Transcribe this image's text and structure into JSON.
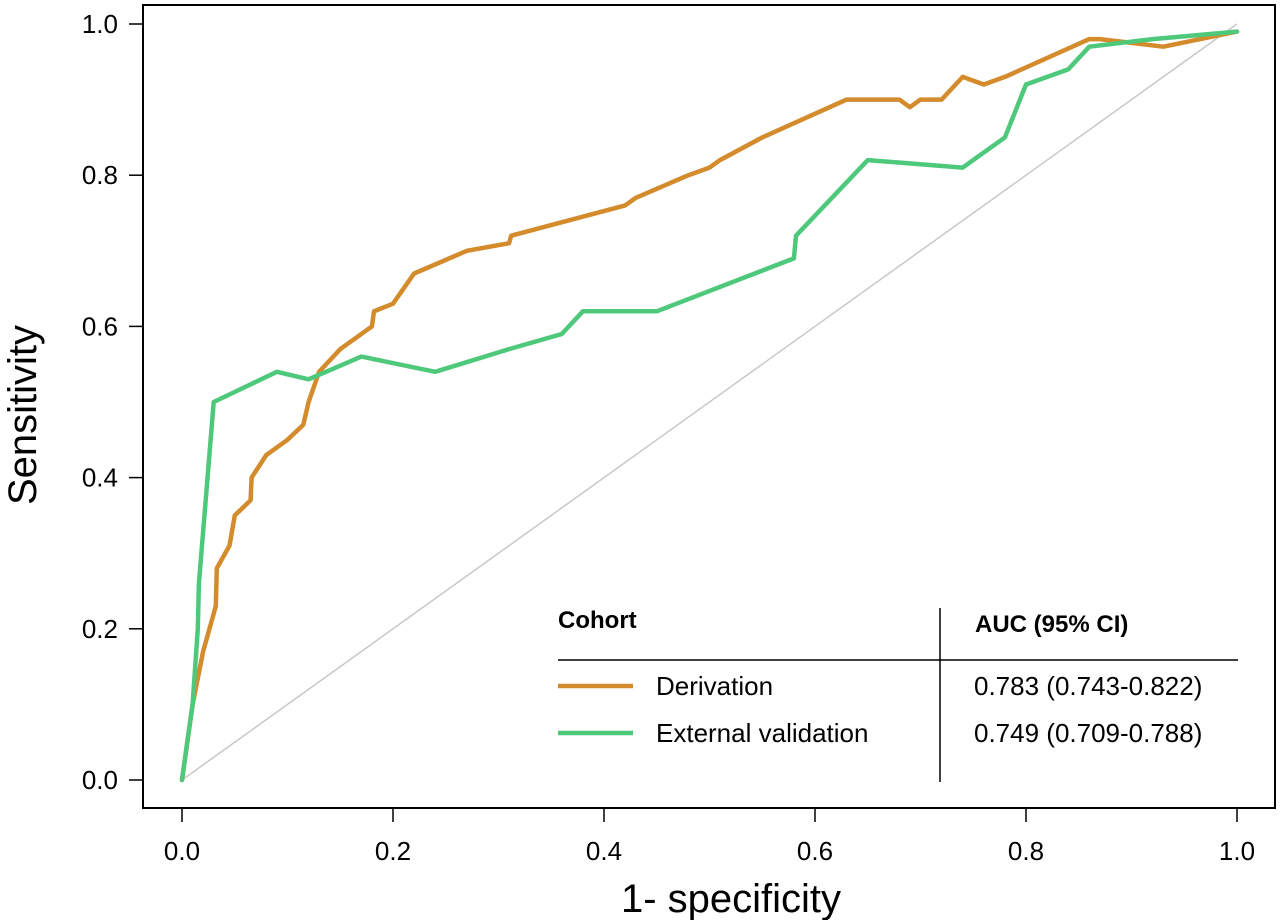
{
  "chart_data": {
    "type": "line",
    "title": "",
    "xlabel": "1- specificity",
    "ylabel": "Sensitivity",
    "xlim": [
      0,
      1
    ],
    "ylim": [
      0,
      1
    ],
    "grid": false,
    "x_ticks": [
      "0.0",
      "0.2",
      "0.4",
      "0.6",
      "0.8",
      "1.0"
    ],
    "y_ticks": [
      "0.0",
      "0.2",
      "0.4",
      "0.6",
      "0.8",
      "1.0"
    ],
    "reference_line": {
      "from": [
        0,
        0
      ],
      "to": [
        1,
        1
      ],
      "color": "#c8c8c8"
    },
    "legend": {
      "placement": "bottom-right",
      "header_left": "Cohort",
      "header_right": "AUC (95% CI)"
    },
    "series": [
      {
        "name": "Derivation",
        "auc": "0.783 (0.743-0.822)",
        "color": "#d38b2c",
        "points": [
          [
            0.0,
            0.0
          ],
          [
            0.01,
            0.1
          ],
          [
            0.02,
            0.17
          ],
          [
            0.03,
            0.22
          ],
          [
            0.032,
            0.23
          ],
          [
            0.033,
            0.28
          ],
          [
            0.045,
            0.31
          ],
          [
            0.05,
            0.35
          ],
          [
            0.065,
            0.37
          ],
          [
            0.066,
            0.4
          ],
          [
            0.08,
            0.43
          ],
          [
            0.1,
            0.45
          ],
          [
            0.115,
            0.47
          ],
          [
            0.12,
            0.5
          ],
          [
            0.13,
            0.54
          ],
          [
            0.15,
            0.57
          ],
          [
            0.18,
            0.6
          ],
          [
            0.182,
            0.62
          ],
          [
            0.2,
            0.63
          ],
          [
            0.22,
            0.67
          ],
          [
            0.27,
            0.7
          ],
          [
            0.31,
            0.71
          ],
          [
            0.312,
            0.72
          ],
          [
            0.42,
            0.76
          ],
          [
            0.43,
            0.77
          ],
          [
            0.48,
            0.8
          ],
          [
            0.5,
            0.81
          ],
          [
            0.51,
            0.82
          ],
          [
            0.55,
            0.85
          ],
          [
            0.63,
            0.9
          ],
          [
            0.66,
            0.9
          ],
          [
            0.68,
            0.9
          ],
          [
            0.69,
            0.89
          ],
          [
            0.7,
            0.9
          ],
          [
            0.72,
            0.9
          ],
          [
            0.74,
            0.93
          ],
          [
            0.76,
            0.92
          ],
          [
            0.78,
            0.93
          ],
          [
            0.86,
            0.98
          ],
          [
            0.87,
            0.98
          ],
          [
            0.93,
            0.97
          ],
          [
            1.0,
            0.99
          ]
        ]
      },
      {
        "name": "External validation",
        "auc": "0.749 (0.709-0.788)",
        "color": "#4ec97b",
        "points": [
          [
            0.0,
            0.0
          ],
          [
            0.005,
            0.05
          ],
          [
            0.01,
            0.1
          ],
          [
            0.015,
            0.2
          ],
          [
            0.016,
            0.26
          ],
          [
            0.03,
            0.5
          ],
          [
            0.09,
            0.54
          ],
          [
            0.12,
            0.53
          ],
          [
            0.17,
            0.56
          ],
          [
            0.24,
            0.54
          ],
          [
            0.31,
            0.57
          ],
          [
            0.36,
            0.59
          ],
          [
            0.38,
            0.62
          ],
          [
            0.45,
            0.62
          ],
          [
            0.58,
            0.69
          ],
          [
            0.582,
            0.72
          ],
          [
            0.65,
            0.82
          ],
          [
            0.74,
            0.81
          ],
          [
            0.78,
            0.85
          ],
          [
            0.8,
            0.92
          ],
          [
            0.84,
            0.94
          ],
          [
            0.86,
            0.97
          ],
          [
            0.92,
            0.98
          ],
          [
            1.0,
            0.99
          ]
        ]
      }
    ]
  }
}
